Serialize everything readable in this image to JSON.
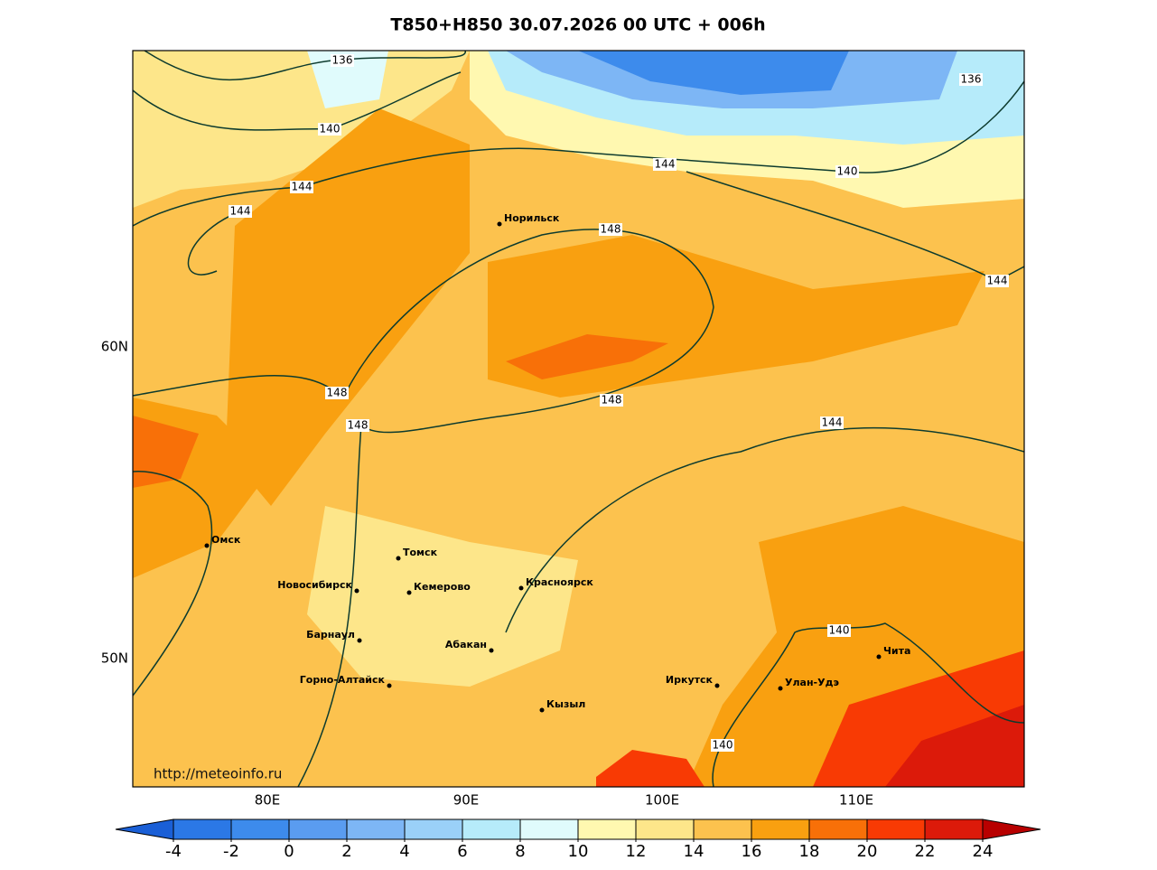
{
  "title": "T850+H850 30.07.2026 00 UTC + 006h",
  "url": "http://meteoinfo.ru",
  "lon_labels": [
    "80E",
    "90E",
    "100E",
    "110E"
  ],
  "lat_labels": [
    "60N",
    "50N"
  ],
  "cities": [
    "Норильск",
    "Омск",
    "Томск",
    "Новосибирск",
    "Кемерово",
    "Красноярск",
    "Барнаул",
    "Абакан",
    "Горно-Алтайск",
    "Кызыл",
    "Иркутск",
    "Улан-Удэ",
    "Чита"
  ],
  "contour_labels": [
    "136",
    "136",
    "140",
    "140",
    "144",
    "144",
    "144",
    "148",
    "144",
    "148",
    "148",
    "148",
    "144",
    "140",
    "140"
  ],
  "colorbar": {
    "ticks": [
      -4,
      -2,
      0,
      2,
      4,
      6,
      8,
      10,
      12,
      14,
      16,
      18,
      20,
      22,
      24
    ],
    "colors": [
      "#1a5fd6",
      "#2b78e6",
      "#3d8bec",
      "#5a9cf0",
      "#7db6f5",
      "#9ad0f8",
      "#b6ebfa",
      "#e0fbfc",
      "#fff8b0",
      "#fde68a",
      "#fcc24e",
      "#f9a010",
      "#f87008",
      "#f83a04",
      "#dc1a0a",
      "#b80000"
    ]
  }
}
